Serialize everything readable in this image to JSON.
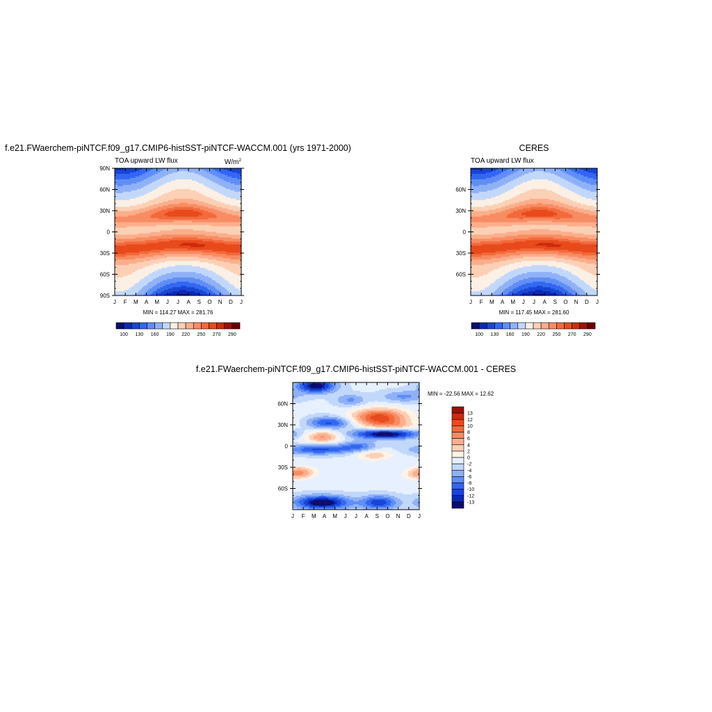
{
  "colors": {
    "model_obs_scale": [
      "#0c0c70",
      "#0a28b5",
      "#1844d6",
      "#3267f0",
      "#5f8ef5",
      "#8fb1f7",
      "#c2d8fb",
      "#fbf0e5",
      "#fcd0b5",
      "#fbae8c",
      "#f88c63",
      "#f26a3c",
      "#e84a1c",
      "#cc2b0c",
      "#9a1208",
      "#6a0000"
    ],
    "diff_scale": [
      "#0c0c70",
      "#0a28b5",
      "#1844d6",
      "#3267f0",
      "#5f8ef5",
      "#8fb1f7",
      "#c2d8fb",
      "#e7f0ff",
      "#fff2e6",
      "#fcd0b5",
      "#fbae8c",
      "#f88c63",
      "#f26a3c",
      "#e84a1c",
      "#cc2b0c",
      "#9a1208"
    ]
  },
  "chart_data": [
    {
      "id": "model",
      "type": "heatmap",
      "title": "f.e21.FWaerchem-piNTCF.f09_g17.CMIP6-histSST-piNTCF-WACCM.001 (yrs 1971-2000)",
      "left_label": "TOA upward LW flux",
      "units_label": "W/m",
      "units_sup": "2",
      "x_tick_labels": [
        "J",
        "F",
        "M",
        "A",
        "M",
        "J",
        "J",
        "A",
        "S",
        "O",
        "N",
        "D",
        "J"
      ],
      "y_tick_labels": [
        "90N",
        "60N",
        "30N",
        "0",
        "30S",
        "60S",
        "90S"
      ],
      "y_ticks": [
        90,
        60,
        30,
        0,
        -30,
        -60,
        -90
      ],
      "xlim": [
        0,
        12
      ],
      "ylim": [
        -90,
        90
      ],
      "stats": "MIN = 114.27  MAX = 281.76",
      "min": 114.27,
      "max": 281.76,
      "colorbar_levels": [
        100,
        115,
        130,
        145,
        160,
        175,
        190,
        205,
        220,
        235,
        250,
        260,
        270,
        280,
        290
      ],
      "colorbar_labels": [
        "100",
        "130",
        "160",
        "190",
        "220",
        "250",
        "270",
        "290"
      ],
      "colorbar_label_indices": [
        0,
        2,
        4,
        6,
        8,
        10,
        12,
        14
      ]
    },
    {
      "id": "obs",
      "type": "heatmap",
      "title": "CERES",
      "left_label": "TOA upward LW flux",
      "x_tick_labels": [
        "J",
        "F",
        "M",
        "A",
        "M",
        "J",
        "J",
        "A",
        "S",
        "O",
        "N",
        "D",
        "J"
      ],
      "y_tick_labels": [
        "60N",
        "30N",
        "0",
        "30S",
        "60S"
      ],
      "y_ticks": [
        60,
        30,
        0,
        -30,
        -60
      ],
      "xlim": [
        0,
        12
      ],
      "ylim": [
        -90,
        90
      ],
      "stats": "MIN = 117.45  MAX = 281.60",
      "min": 117.45,
      "max": 281.6,
      "colorbar_levels": [
        100,
        115,
        130,
        145,
        160,
        175,
        190,
        205,
        220,
        235,
        250,
        260,
        270,
        280,
        290
      ],
      "colorbar_labels": [
        "100",
        "130",
        "160",
        "190",
        "220",
        "250",
        "270",
        "290"
      ],
      "colorbar_label_indices": [
        0,
        2,
        4,
        6,
        8,
        10,
        12,
        14
      ]
    },
    {
      "id": "diff",
      "type": "heatmap",
      "title": "f.e21.FWaerchem-piNTCF.f09_g17.CMIP6-histSST-piNTCF-WACCM.001 - CERES",
      "x_tick_labels": [
        "J",
        "F",
        "M",
        "A",
        "M",
        "J",
        "J",
        "A",
        "S",
        "O",
        "N",
        "D",
        "J"
      ],
      "y_tick_labels": [
        "60N",
        "30N",
        "0",
        "30S",
        "60S"
      ],
      "y_ticks": [
        60,
        30,
        0,
        -30,
        -60
      ],
      "xlim": [
        0,
        12
      ],
      "ylim": [
        -90,
        90
      ],
      "stats": "MIN = -22.56 MAX =  12.62",
      "min": -22.56,
      "max": 12.62,
      "colorbar_levels": [
        13,
        12,
        10,
        8,
        6,
        4,
        2,
        0,
        -2,
        -4,
        -6,
        -8,
        -10,
        -12,
        -13
      ],
      "colorbar_labels": [
        "13",
        "12",
        "10",
        "8",
        "6",
        "4",
        "2",
        "0",
        "-2",
        "-4",
        "-6",
        "-8",
        "-10",
        "-12",
        "-13"
      ]
    }
  ]
}
